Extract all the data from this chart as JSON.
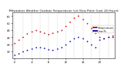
{
  "title": "Milwaukee Weather Outdoor Temperature (vs) Dew Point (Last 24 Hours)",
  "temp_color": "#cc0000",
  "dewpoint_color": "#0000bb",
  "background_color": "#ffffff",
  "grid_color": "#999999",
  "temp_values": [
    22,
    26,
    30,
    35,
    38,
    40,
    38,
    36,
    34,
    36,
    38,
    40,
    46,
    52,
    57,
    60,
    56,
    50,
    43,
    36,
    30,
    28,
    30,
    32
  ],
  "dew_values": [
    5,
    7,
    10,
    12,
    14,
    16,
    16,
    15,
    13,
    12,
    14,
    16,
    20,
    24,
    28,
    30,
    28,
    24,
    20,
    16,
    26,
    28,
    30,
    30
  ],
  "ylim": [
    0,
    65
  ],
  "ytick_positions": [
    10,
    20,
    30,
    40,
    50,
    60
  ],
  "ytick_labels": [
    "10",
    "20",
    "30",
    "40",
    "50",
    "60"
  ],
  "xtick_positions": [
    0,
    4,
    8,
    12,
    16,
    20
  ],
  "xtick_labels": [
    "0",
    "4",
    "8",
    "12",
    "16",
    "20"
  ],
  "legend_temp_label": "Temperature",
  "legend_dew_label": "Dew Pt.",
  "marker_size": 1.4,
  "title_fontsize": 3.2,
  "tick_fontsize": 2.8,
  "legend_fontsize": 2.5,
  "grid_linewidth": 0.35,
  "spine_linewidth": 0.4
}
